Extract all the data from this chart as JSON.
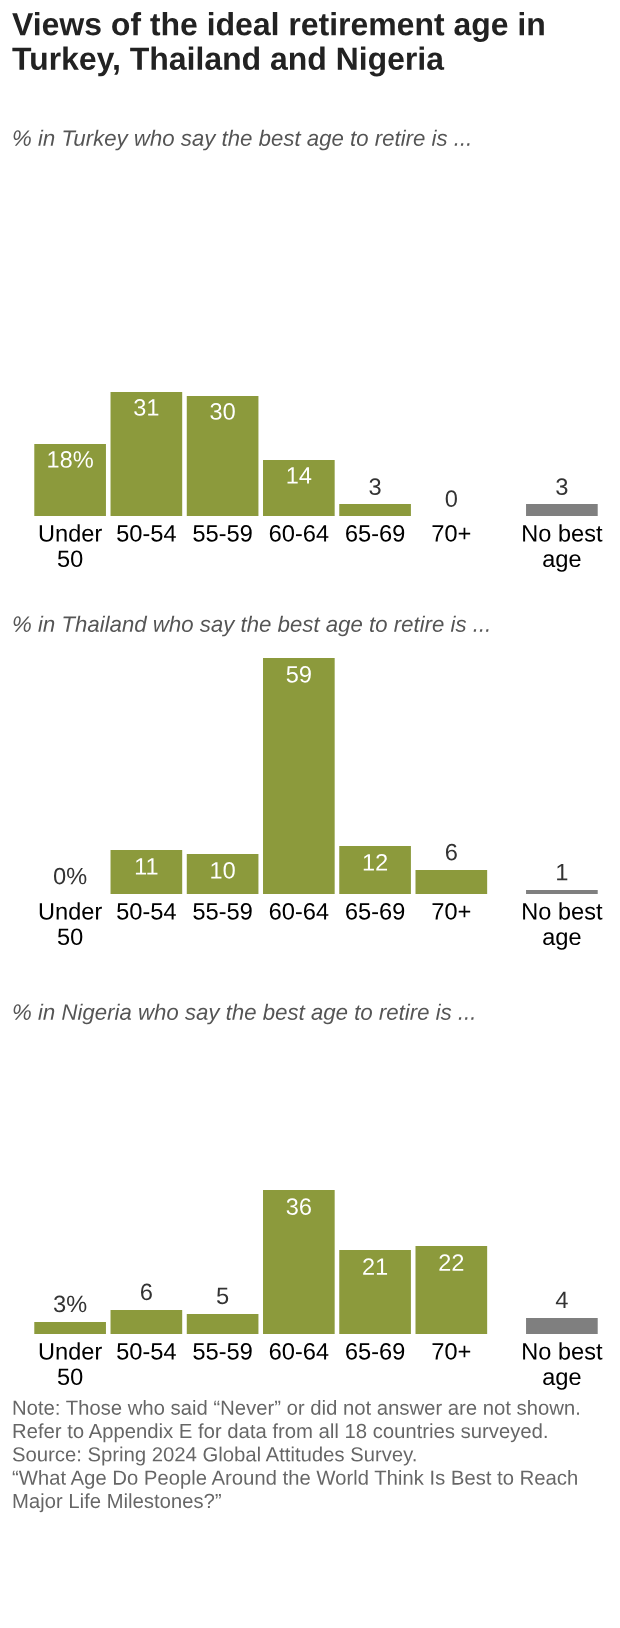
{
  "chart_data": [
    {
      "type": "bar",
      "title": "Views of the ideal retirement age in Turkey, Thailand and Nigeria",
      "subtitle": "% in Turkey who say the best age to retire is ...",
      "categories": [
        "Under\n50",
        "50-54",
        "55-59",
        "60-64",
        "65-69",
        "70+",
        "No best\nage"
      ],
      "values": [
        18,
        31,
        30,
        14,
        3,
        0,
        3
      ],
      "value_labels": [
        "18%",
        "31",
        "30",
        "14",
        "3",
        "0",
        "3"
      ],
      "colors": [
        "#8c9a3c",
        "#8c9a3c",
        "#8c9a3c",
        "#8c9a3c",
        "#8c9a3c",
        "#8c9a3c",
        "#7f7f7f"
      ],
      "tick_labels": "x"
    },
    {
      "type": "bar",
      "subtitle": "% in Thailand who say the best age to retire is ...",
      "categories": [
        "Under\n50",
        "50-54",
        "55-59",
        "60-64",
        "65-69",
        "70+",
        "No best\nage"
      ],
      "values": [
        0,
        11,
        10,
        59,
        12,
        6,
        1
      ],
      "value_labels": [
        "0%",
        "11",
        "10",
        "59",
        "12",
        "6",
        "1"
      ],
      "colors": [
        "#8c9a3c",
        "#8c9a3c",
        "#8c9a3c",
        "#8c9a3c",
        "#8c9a3c",
        "#8c9a3c",
        "#7f7f7f"
      ],
      "tick_labels": "x"
    },
    {
      "type": "bar",
      "subtitle": "% in Nigeria who say the best age to retire is ...",
      "categories": [
        "Under\n50",
        "50-54",
        "55-59",
        "60-64",
        "65-69",
        "70+",
        "No best\nage"
      ],
      "values": [
        3,
        6,
        5,
        36,
        21,
        22,
        4
      ],
      "value_labels": [
        "3%",
        "6",
        "5",
        "36",
        "21",
        "22",
        "4"
      ],
      "colors": [
        "#8c9a3c",
        "#8c9a3c",
        "#8c9a3c",
        "#8c9a3c",
        "#8c9a3c",
        "#8c9a3c",
        "#7f7f7f"
      ],
      "tick_labels": "x",
      "annotations": [
        "Note: Those who said “Never” or did not answer are not shown.\nRefer to Appendix E for data from all 18 countries surveyed.\nSource: Spring 2024 Global Attitudes Survey.\n“What Age Do People Around the World Think Is Best to Reach\nMajor Life Milestones?”"
      ]
    }
  ]
}
